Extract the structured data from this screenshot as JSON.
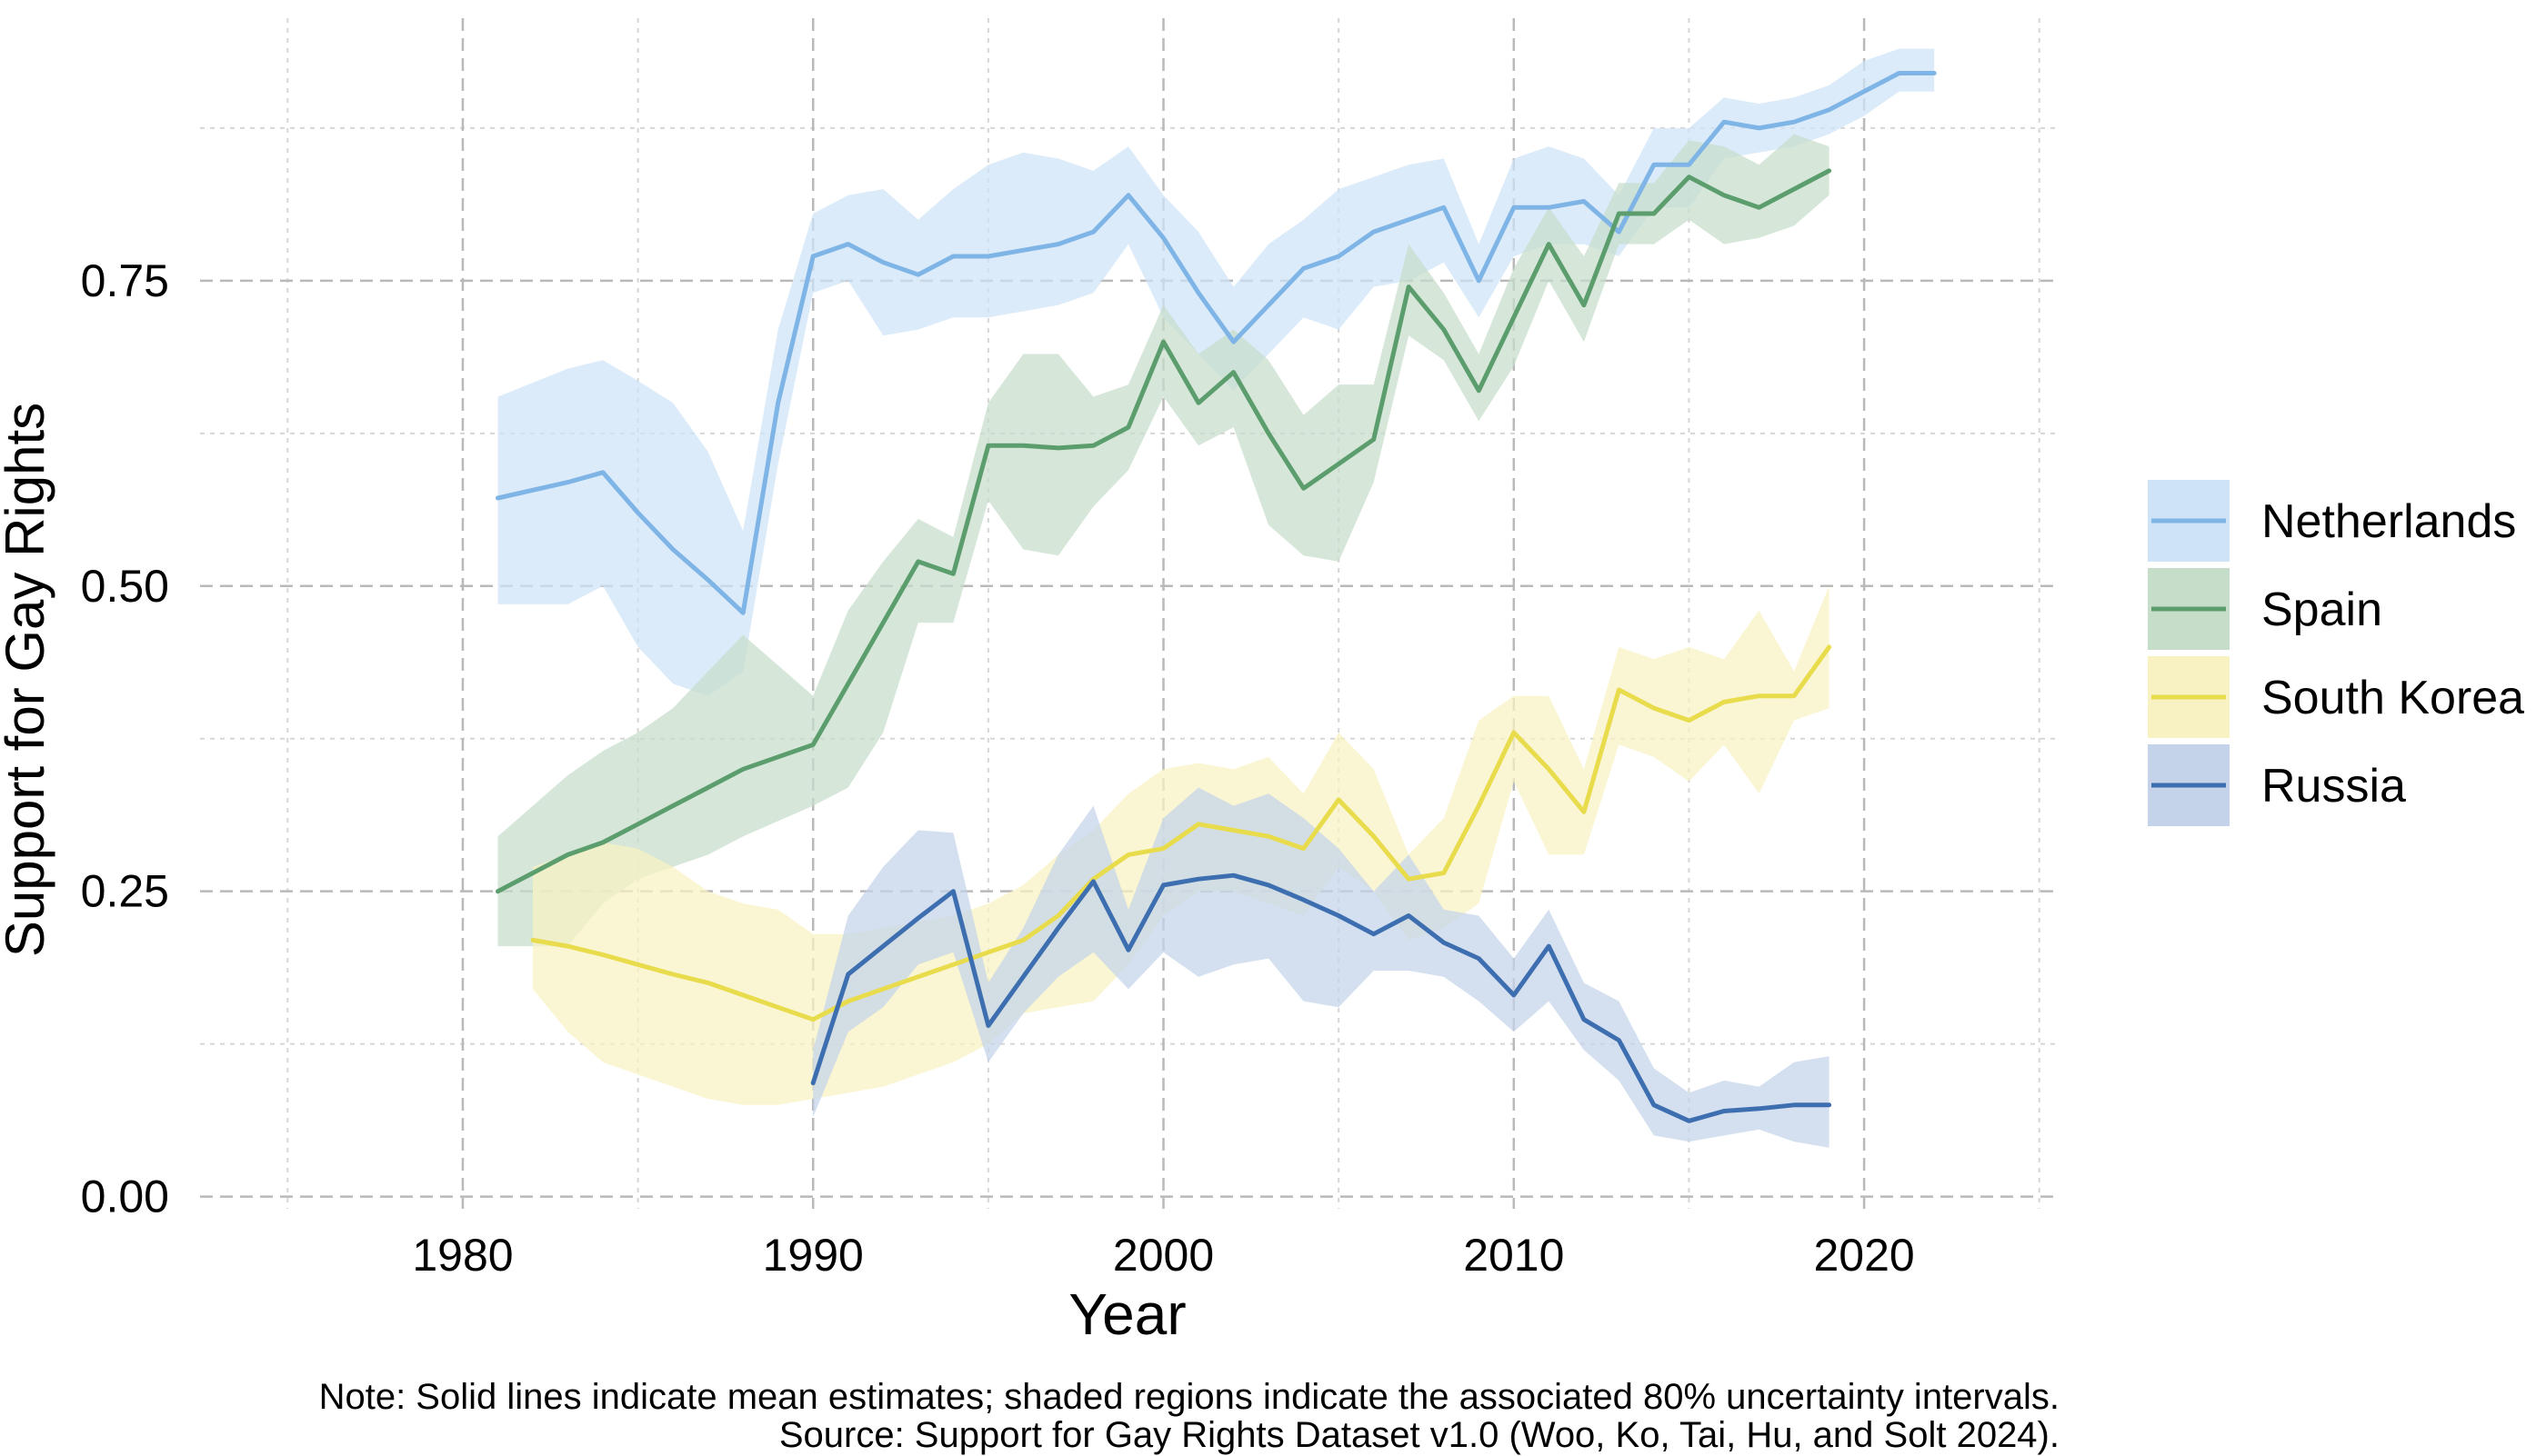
{
  "chart_data": {
    "type": "line",
    "title": "",
    "xlabel": "Year",
    "ylabel": "Support for Gay Rights",
    "xlim": [
      1972.5,
      2025.5
    ],
    "ylim": [
      -0.01,
      0.965
    ],
    "x_ticks": [
      1980,
      1990,
      2000,
      2010,
      2020
    ],
    "x_tick_labels": [
      "1980",
      "1990",
      "2000",
      "2010",
      "2020"
    ],
    "y_ticks": [
      0,
      0.25,
      0.5,
      0.75
    ],
    "y_tick_labels": [
      "0.00",
      "0.25",
      "0.50",
      "0.75"
    ],
    "grid": true,
    "legend_placement": "right",
    "series": [
      {
        "name": "Netherlands",
        "color": "#7eb4e6",
        "fill": "#cfe3f7",
        "x": [
          1981,
          1983,
          1984,
          1985,
          1986,
          1987,
          1988,
          1989,
          1990,
          1991,
          1992,
          1993,
          1994,
          1995,
          1996,
          1997,
          1998,
          1999,
          2000,
          2001,
          2002,
          2003,
          2004,
          2005,
          2006,
          2007,
          2008,
          2009,
          2010,
          2011,
          2012,
          2013,
          2014,
          2015,
          2016,
          2017,
          2018,
          2019,
          2020,
          2021,
          2022
        ],
        "mean": [
          0.572,
          0.585,
          0.593,
          0.56,
          0.53,
          0.505,
          0.478,
          0.65,
          0.77,
          0.78,
          0.765,
          0.755,
          0.77,
          0.77,
          0.775,
          0.78,
          0.79,
          0.82,
          0.785,
          0.74,
          0.7,
          0.73,
          0.76,
          0.77,
          0.79,
          0.8,
          0.81,
          0.75,
          0.81,
          0.81,
          0.815,
          0.79,
          0.845,
          0.845,
          0.88,
          0.875,
          0.88,
          0.89,
          0.905,
          0.92,
          0.92
        ],
        "lower": [
          0.485,
          0.485,
          0.5,
          0.45,
          0.42,
          0.41,
          0.43,
          0.6,
          0.74,
          0.75,
          0.705,
          0.71,
          0.72,
          0.72,
          0.725,
          0.73,
          0.74,
          0.78,
          0.72,
          0.69,
          0.66,
          0.69,
          0.72,
          0.71,
          0.745,
          0.75,
          0.765,
          0.72,
          0.77,
          0.78,
          0.78,
          0.77,
          0.81,
          0.81,
          0.85,
          0.855,
          0.86,
          0.87,
          0.885,
          0.905,
          0.905
        ],
        "upper": [
          0.655,
          0.678,
          0.685,
          0.668,
          0.65,
          0.61,
          0.545,
          0.71,
          0.805,
          0.82,
          0.825,
          0.8,
          0.825,
          0.845,
          0.855,
          0.85,
          0.84,
          0.86,
          0.82,
          0.79,
          0.745,
          0.78,
          0.8,
          0.825,
          0.835,
          0.845,
          0.85,
          0.78,
          0.85,
          0.86,
          0.85,
          0.82,
          0.875,
          0.875,
          0.9,
          0.895,
          0.9,
          0.91,
          0.93,
          0.94,
          0.94
        ]
      },
      {
        "name": "Spain",
        "color": "#5b9d6d",
        "fill": "#c6ddca",
        "x": [
          1981,
          1983,
          1984,
          1985,
          1986,
          1987,
          1988,
          1990,
          1991,
          1992,
          1993,
          1994,
          1995,
          1996,
          1997,
          1998,
          1999,
          2000,
          2001,
          2002,
          2003,
          2004,
          2005,
          2006,
          2007,
          2008,
          2009,
          2010,
          2011,
          2012,
          2013,
          2014,
          2015,
          2016,
          2017,
          2018,
          2019
        ],
        "mean": [
          0.25,
          0.28,
          0.29,
          0.305,
          0.32,
          0.335,
          0.35,
          0.37,
          0.42,
          0.47,
          0.52,
          0.51,
          0.615,
          0.615,
          0.613,
          0.615,
          0.63,
          0.7,
          0.65,
          0.675,
          0.625,
          0.58,
          0.6,
          0.62,
          0.745,
          0.71,
          0.66,
          0.72,
          0.78,
          0.73,
          0.805,
          0.805,
          0.835,
          0.82,
          0.81,
          0.825,
          0.84
        ],
        "lower": [
          0.205,
          0.205,
          0.24,
          0.26,
          0.27,
          0.28,
          0.295,
          0.32,
          0.335,
          0.38,
          0.47,
          0.47,
          0.57,
          0.53,
          0.525,
          0.565,
          0.595,
          0.655,
          0.615,
          0.63,
          0.55,
          0.525,
          0.52,
          0.585,
          0.705,
          0.685,
          0.635,
          0.68,
          0.75,
          0.7,
          0.78,
          0.78,
          0.8,
          0.78,
          0.785,
          0.795,
          0.82
        ],
        "upper": [
          0.295,
          0.345,
          0.365,
          0.38,
          0.4,
          0.43,
          0.46,
          0.41,
          0.48,
          0.52,
          0.555,
          0.54,
          0.65,
          0.69,
          0.69,
          0.655,
          0.665,
          0.73,
          0.69,
          0.71,
          0.685,
          0.64,
          0.665,
          0.665,
          0.78,
          0.74,
          0.69,
          0.76,
          0.81,
          0.77,
          0.83,
          0.83,
          0.865,
          0.86,
          0.845,
          0.87,
          0.86
        ]
      },
      {
        "name": "South Korea",
        "color": "#e8dc4d",
        "fill": "#f8f2c2",
        "x": [
          1982,
          1983,
          1984,
          1985,
          1986,
          1987,
          1988,
          1989,
          1990,
          1991,
          1992,
          1993,
          1994,
          1995,
          1996,
          1997,
          1998,
          1999,
          2000,
          2001,
          2002,
          2003,
          2004,
          2005,
          2006,
          2007,
          2008,
          2009,
          2010,
          2011,
          2012,
          2013,
          2014,
          2015,
          2016,
          2017,
          2018,
          2019
        ],
        "mean": [
          0.21,
          0.205,
          0.198,
          0.19,
          0.182,
          0.175,
          0.165,
          0.155,
          0.145,
          0.16,
          0.17,
          0.18,
          0.19,
          0.2,
          0.21,
          0.23,
          0.26,
          0.28,
          0.285,
          0.305,
          0.3,
          0.295,
          0.285,
          0.325,
          0.295,
          0.26,
          0.265,
          0.32,
          0.38,
          0.35,
          0.315,
          0.415,
          0.4,
          0.39,
          0.405,
          0.41,
          0.41,
          0.45
        ],
        "lower": [
          0.17,
          0.135,
          0.11,
          0.1,
          0.09,
          0.08,
          0.075,
          0.075,
          0.08,
          0.085,
          0.09,
          0.1,
          0.11,
          0.125,
          0.15,
          0.155,
          0.16,
          0.19,
          0.23,
          0.25,
          0.25,
          0.24,
          0.23,
          0.27,
          0.25,
          0.21,
          0.22,
          0.24,
          0.34,
          0.28,
          0.28,
          0.37,
          0.36,
          0.34,
          0.37,
          0.33,
          0.39,
          0.4
        ],
        "upper": [
          0.27,
          0.28,
          0.29,
          0.285,
          0.27,
          0.25,
          0.24,
          0.235,
          0.215,
          0.215,
          0.22,
          0.225,
          0.23,
          0.24,
          0.255,
          0.28,
          0.3,
          0.33,
          0.35,
          0.355,
          0.35,
          0.36,
          0.33,
          0.38,
          0.35,
          0.28,
          0.31,
          0.39,
          0.41,
          0.41,
          0.35,
          0.45,
          0.44,
          0.45,
          0.44,
          0.48,
          0.43,
          0.5
        ]
      },
      {
        "name": "Russia",
        "color": "#3d6eaf",
        "fill": "#c4d3ea",
        "x": [
          1990,
          1991,
          1992,
          1993,
          1994,
          1995,
          1996,
          1997,
          1998,
          1999,
          2000,
          2001,
          2002,
          2003,
          2004,
          2005,
          2006,
          2007,
          2008,
          2009,
          2010,
          2011,
          2012,
          2013,
          2014,
          2015,
          2016,
          2017,
          2018,
          2019
        ],
        "mean": [
          0.093,
          0.182,
          0.205,
          0.228,
          0.25,
          0.14,
          0.18,
          0.22,
          0.258,
          0.202,
          0.255,
          0.26,
          0.263,
          0.255,
          0.243,
          0.23,
          0.215,
          0.23,
          0.208,
          0.195,
          0.165,
          0.205,
          0.145,
          0.128,
          0.075,
          0.062,
          0.07,
          0.072,
          0.075,
          0.075
        ],
        "lower": [
          0.065,
          0.135,
          0.155,
          0.19,
          0.2,
          0.11,
          0.15,
          0.18,
          0.2,
          0.17,
          0.2,
          0.18,
          0.19,
          0.195,
          0.16,
          0.155,
          0.185,
          0.185,
          0.18,
          0.16,
          0.135,
          0.16,
          0.12,
          0.095,
          0.05,
          0.045,
          0.05,
          0.055,
          0.045,
          0.04
        ],
        "upper": [
          0.12,
          0.23,
          0.27,
          0.3,
          0.298,
          0.175,
          0.22,
          0.28,
          0.32,
          0.235,
          0.31,
          0.335,
          0.32,
          0.33,
          0.31,
          0.285,
          0.25,
          0.28,
          0.235,
          0.23,
          0.195,
          0.235,
          0.175,
          0.16,
          0.105,
          0.085,
          0.095,
          0.09,
          0.11,
          0.115
        ]
      }
    ]
  },
  "caption": {
    "note": "Note: Solid lines indicate mean estimates; shaded regions indicate the associated 80% uncertainty intervals.",
    "source": "Source: Support for Gay Rights Dataset v1.0 (Woo, Ko, Tai, Hu, and Solt 2024)."
  }
}
